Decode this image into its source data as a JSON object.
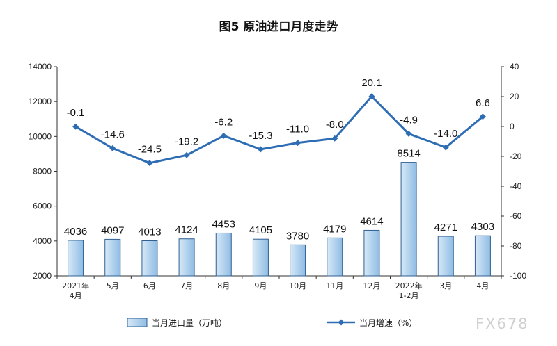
{
  "watermark": "FX678",
  "chart_data": {
    "type": "bar",
    "title": "图5  原油进口月度走势",
    "categories": [
      "2021年\n4月",
      "5月",
      "6月",
      "7月",
      "8月",
      "9月",
      "10月",
      "11月",
      "12月",
      "2022年\n1-2月",
      "3月",
      "4月"
    ],
    "series": [
      {
        "name": "当月进口量（万吨）",
        "type": "bar",
        "axis": "left",
        "values": [
          4036,
          4097,
          4013,
          4124,
          4453,
          4105,
          3780,
          4179,
          4614,
          8514,
          4271,
          4303
        ],
        "labels": [
          "4036",
          "4097",
          "4013",
          "4124",
          "4453",
          "4105",
          "3780",
          "4179",
          "4614",
          "8514",
          "4271",
          "4303"
        ]
      },
      {
        "name": "当月增速（%）",
        "type": "line",
        "axis": "right",
        "values": [
          -0.1,
          -14.6,
          -24.5,
          -19.2,
          -6.2,
          -15.3,
          -11.0,
          -8.0,
          20.1,
          -4.9,
          -14.0,
          6.6
        ],
        "labels": [
          "-0.1",
          "-14.6",
          "-24.5",
          "-19.2",
          "-6.2",
          "-15.3",
          "-11.0",
          "-8.0",
          "20.1",
          "-4.9",
          "-14.0",
          "6.6"
        ]
      }
    ],
    "y_left": {
      "min": 2000,
      "max": 14000,
      "step": 2000,
      "ticks": [
        "2000",
        "4000",
        "6000",
        "8000",
        "10000",
        "12000",
        "14000"
      ]
    },
    "y_right": {
      "min": -100,
      "max": 40,
      "step": 20,
      "ticks": [
        "-100",
        "-80",
        "-60",
        "-40",
        "-20",
        "0",
        "20",
        "40"
      ]
    },
    "grid": false,
    "legend_position": "bottom",
    "colors": {
      "bar_fill_light": "#d7e9f7",
      "bar_fill_dark": "#8fbce4",
      "bar_stroke": "#2f5f91",
      "line": "#2e6db4",
      "axis": "#333333"
    }
  }
}
